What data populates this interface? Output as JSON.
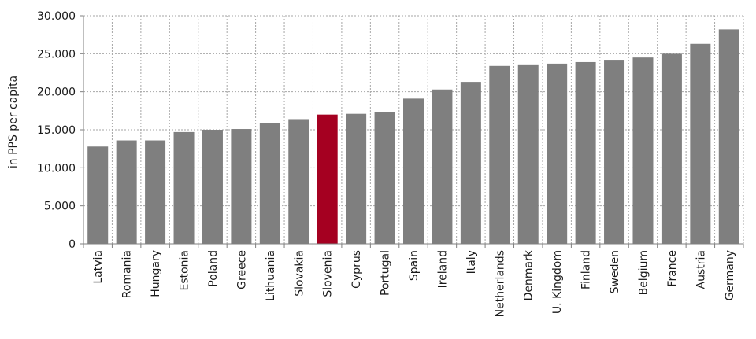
{
  "chart_data": {
    "type": "bar",
    "title": "",
    "xlabel": "",
    "ylabel": "in PPS per capita",
    "ylim": [
      0,
      30000
    ],
    "yticks": [
      0,
      5000,
      10000,
      15000,
      20000,
      25000,
      30000
    ],
    "ytick_labels": [
      "0",
      "5.000",
      "10.000",
      "15.000",
      "20.000",
      "25.000",
      "30.000"
    ],
    "grid": true,
    "categories": [
      "Latvia",
      "Romania",
      "Hungary",
      "Estonia",
      "Poland",
      "Greece",
      "Lithuania",
      "Slovakia",
      "Slovenia",
      "Cyprus",
      "Portugal",
      "Spain",
      "Ireland",
      "Italy",
      "Netherlands",
      "Denmark",
      "U. Kingdom",
      "Finland",
      "Sweden",
      "Belgium",
      "France",
      "Austria",
      "Germany"
    ],
    "values": [
      12800,
      13600,
      13600,
      14700,
      15000,
      15100,
      15900,
      16400,
      17000,
      17100,
      17300,
      19100,
      20300,
      21300,
      23400,
      23500,
      23700,
      23900,
      24200,
      24500,
      25000,
      26300,
      28200
    ],
    "highlight": "Slovenia",
    "colors": {
      "bar": "#7f7f7f",
      "highlight": "#a50021",
      "grid": "#a6a6a6",
      "axis": "#7f7f7f"
    }
  }
}
